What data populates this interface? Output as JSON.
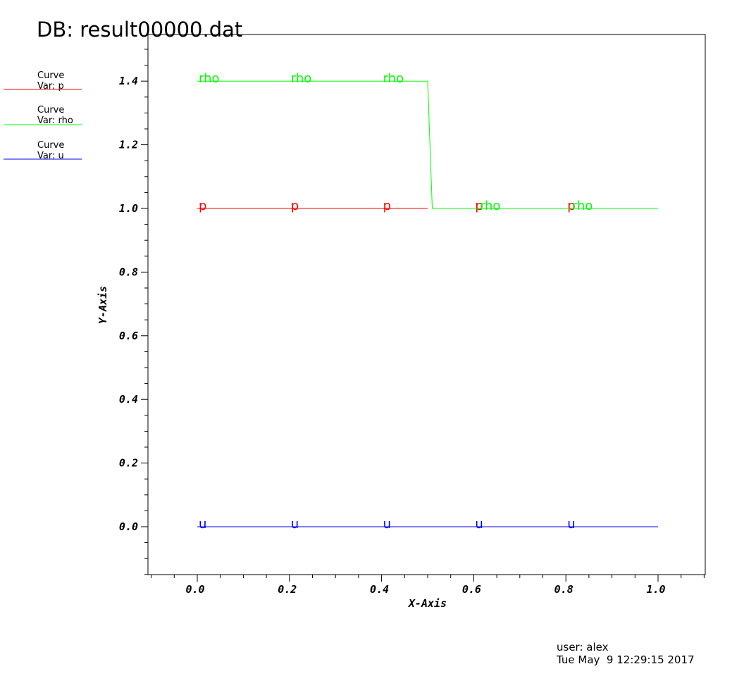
{
  "db_title": "DB: result00000.dat",
  "legend": [
    {
      "line1": "Curve",
      "line2": "Var: p",
      "color": "#ff0000"
    },
    {
      "line1": "Curve",
      "line2": "Var: rho",
      "color": "#00ff00"
    },
    {
      "line1": "Curve",
      "line2": "Var: u",
      "color": "#0000ff"
    }
  ],
  "footer": {
    "user": "user: alex",
    "date": "Tue May  9 12:29:15 2017"
  },
  "chart_data": {
    "type": "line",
    "xlabel": "X-Axis",
    "ylabel": "Y-Axis",
    "xlim": [
      -0.1,
      1.1
    ],
    "ylim": [
      -0.15,
      1.55
    ],
    "xticks": [
      "0.0",
      "0.2",
      "0.4",
      "0.6",
      "0.8",
      "1.0"
    ],
    "yticks": [
      "0.0",
      "0.2",
      "0.4",
      "0.6",
      "0.8",
      "1.0",
      "1.2",
      "1.4"
    ],
    "grid": false,
    "legend_position": "top-left",
    "series": [
      {
        "name": "p",
        "color": "#ff0000",
        "points": [
          [
            0.0,
            1.0
          ],
          [
            0.5,
            1.0
          ]
        ],
        "marker_text": "p",
        "label_x": [
          0.0,
          0.2,
          0.4,
          0.6,
          0.8
        ]
      },
      {
        "name": "rho",
        "color": "#00ff00",
        "points": [
          [
            0.0,
            1.4
          ],
          [
            0.5,
            1.4
          ],
          [
            0.51,
            1.0
          ],
          [
            1.0,
            1.0
          ]
        ],
        "marker_text": "rho",
        "label_x": [
          0.0,
          0.2,
          0.4,
          0.61,
          0.81
        ]
      },
      {
        "name": "u",
        "color": "#0000ff",
        "points": [
          [
            0.0,
            0.0
          ],
          [
            1.0,
            0.0
          ]
        ],
        "marker_text": "u",
        "label_x": [
          0.0,
          0.2,
          0.4,
          0.6,
          0.8
        ]
      }
    ]
  }
}
